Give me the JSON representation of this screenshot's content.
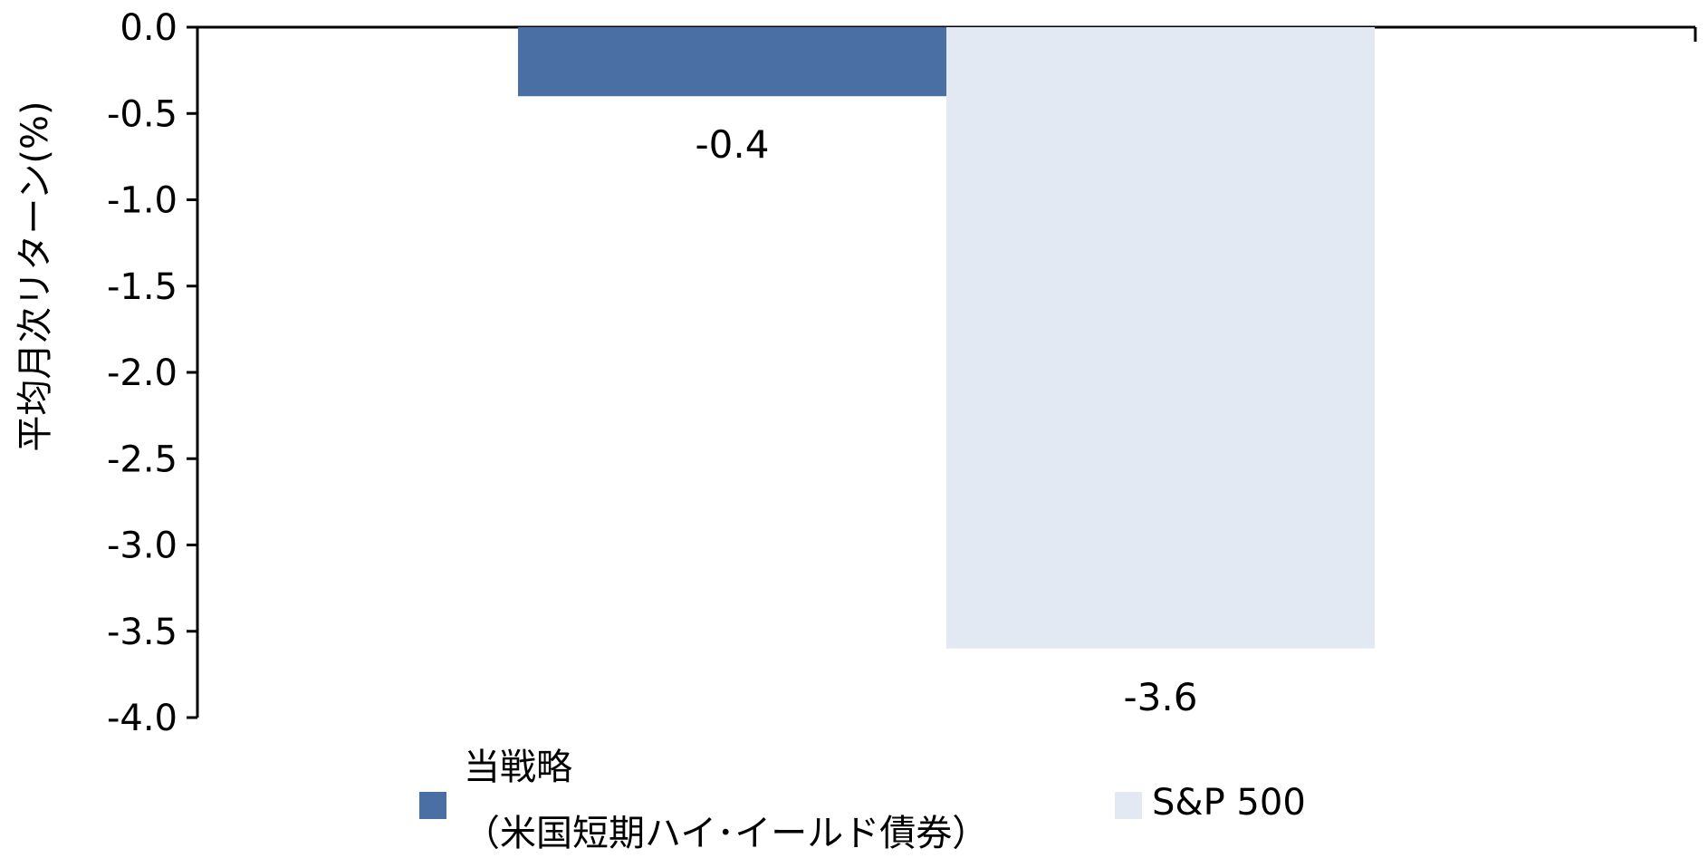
{
  "chart_data": {
    "type": "bar",
    "ylabel": "平均月次リターン(%)",
    "ylim": [
      -4.0,
      0.0
    ],
    "yticks": [
      "0.0",
      "-0.5",
      "-1.0",
      "-1.5",
      "-2.0",
      "-2.5",
      "-3.0",
      "-3.5",
      "-4.0"
    ],
    "ytick_values": [
      0.0,
      -0.5,
      -1.0,
      -1.5,
      -2.0,
      -2.5,
      -3.0,
      -3.5,
      -4.0
    ],
    "grid": false,
    "legend_position": "bottom",
    "series": [
      {
        "name_line1": "当戦略",
        "name_line2": "（米国短期ハイ･イールド債券）",
        "value": -0.4,
        "label": "-0.4",
        "color": "#4a6fa5"
      },
      {
        "name": "S&P 500",
        "value": -3.6,
        "label": "-3.6",
        "color": "#e3e9f2"
      }
    ]
  }
}
